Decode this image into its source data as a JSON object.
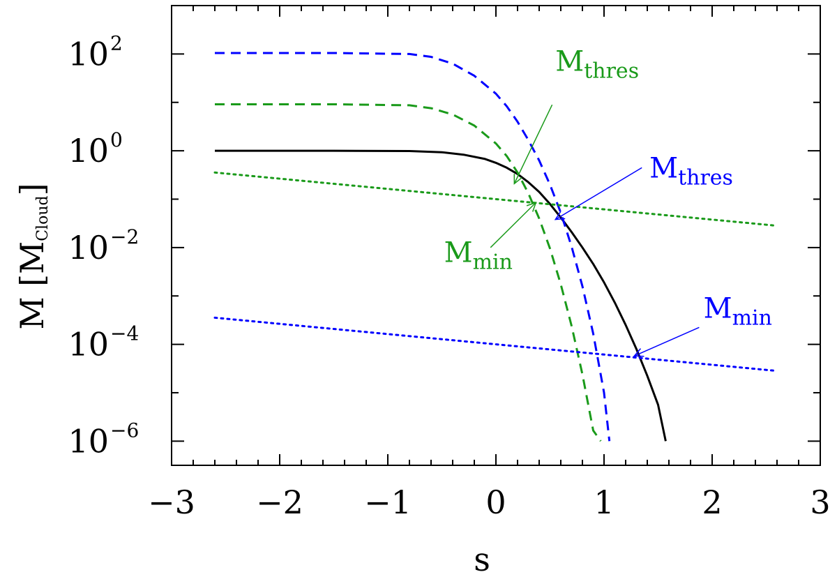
{
  "chart_data": {
    "type": "line",
    "title": "",
    "xlabel": "s",
    "ylabel": {
      "main": "M [M",
      "sub": "Cloud",
      "close": "]"
    },
    "xlim": [
      -3,
      3
    ],
    "ylim_log10": [
      -6.5,
      3
    ],
    "yscale": "log",
    "x_ticks": [
      -3,
      -2,
      -1,
      0,
      1,
      2,
      3
    ],
    "x_tick_labels": [
      "−3",
      "−2",
      "−1",
      "0",
      "1",
      "2",
      "3"
    ],
    "y_ticks_exponents": [
      -6,
      -4,
      -2,
      0,
      2
    ],
    "y_tick_base": "10",
    "y_tick_exp_labels": [
      "−6",
      "−4",
      "−2",
      "0",
      "2"
    ],
    "grid": false,
    "series": [
      {
        "color": "#000000",
        "style": "solid",
        "width": 3,
        "log10M_max": 0,
        "turnover_amp": 0.5,
        "x": [
          -2.6,
          -1.5,
          -0.8,
          -0.5,
          -0.3,
          -0.1,
          0.0,
          0.1,
          0.2,
          0.3,
          0.4,
          0.5,
          0.6,
          0.7,
          0.8,
          0.9,
          1.0,
          1.1,
          1.2,
          1.3,
          1.4,
          1.5,
          1.57
        ],
        "log10_y": [
          0,
          0,
          -0.005,
          -0.03,
          -0.08,
          -0.17,
          -0.25,
          -0.35,
          -0.48,
          -0.65,
          -0.85,
          -1.1,
          -1.38,
          -1.68,
          -2.0,
          -2.34,
          -2.72,
          -3.14,
          -3.6,
          -4.1,
          -4.65,
          -5.25,
          -6.0
        ]
      },
      {
        "color": "#0000ff",
        "style": "dashed",
        "width": 3,
        "x": [
          -2.6,
          -1.5,
          -0.8,
          -0.6,
          -0.4,
          -0.2,
          0.0,
          0.1,
          0.2,
          0.3,
          0.4,
          0.5,
          0.6,
          0.7,
          0.8,
          0.9,
          1.0,
          1.05
        ],
        "log10_y": [
          2.02,
          2.02,
          2.0,
          1.94,
          1.8,
          1.55,
          1.18,
          0.92,
          0.6,
          0.22,
          -0.2,
          -0.7,
          -1.28,
          -1.98,
          -2.8,
          -3.78,
          -5.0,
          -6.0
        ]
      },
      {
        "color": "#1a9a1a",
        "style": "dashed",
        "width": 3,
        "x": [
          -2.6,
          -1.5,
          -0.8,
          -0.6,
          -0.4,
          -0.2,
          0.0,
          0.1,
          0.2,
          0.3,
          0.4,
          0.5,
          0.6,
          0.7,
          0.8,
          0.9,
          0.97
        ],
        "log10_y": [
          0.96,
          0.96,
          0.94,
          0.88,
          0.75,
          0.52,
          0.15,
          -0.11,
          -0.45,
          -0.88,
          -1.4,
          -2.02,
          -2.76,
          -3.62,
          -4.62,
          -5.78,
          -6.0
        ]
      },
      {
        "color": "#1a9a1a",
        "style": "dotted",
        "width": 3,
        "x": [
          -2.6,
          2.6
        ],
        "log10_y": [
          -0.45,
          -1.55
        ]
      },
      {
        "color": "#0000ff",
        "style": "dotted",
        "width": 3,
        "x": [
          -2.6,
          2.6
        ],
        "log10_y": [
          -3.45,
          -4.55
        ]
      }
    ],
    "annotations": [
      {
        "main": "M",
        "sub": "thres",
        "color": "#1a9a1a",
        "text_x": 0.55,
        "text_log10": 1.65,
        "arrow_from": [
          0.52,
          0.95
        ],
        "arrow_to": [
          0.17,
          -0.68
        ]
      },
      {
        "main": "M",
        "sub": "thres",
        "color": "#0000ff",
        "text_x": 1.42,
        "text_log10": -0.55,
        "arrow_from": [
          1.35,
          -0.35
        ],
        "arrow_to": [
          0.55,
          -1.42
        ]
      },
      {
        "main": "M",
        "sub": "min",
        "color": "#1a9a1a",
        "text_x": -0.48,
        "text_log10": -2.3,
        "arrow_from": [
          -0.05,
          -2.0
        ],
        "arrow_to": [
          0.37,
          -1.07
        ]
      },
      {
        "main": "M",
        "sub": "min",
        "color": "#0000ff",
        "text_x": 1.92,
        "text_log10": -3.45,
        "arrow_from": [
          1.88,
          -3.65
        ],
        "arrow_to": [
          1.28,
          -4.24
        ]
      }
    ]
  }
}
